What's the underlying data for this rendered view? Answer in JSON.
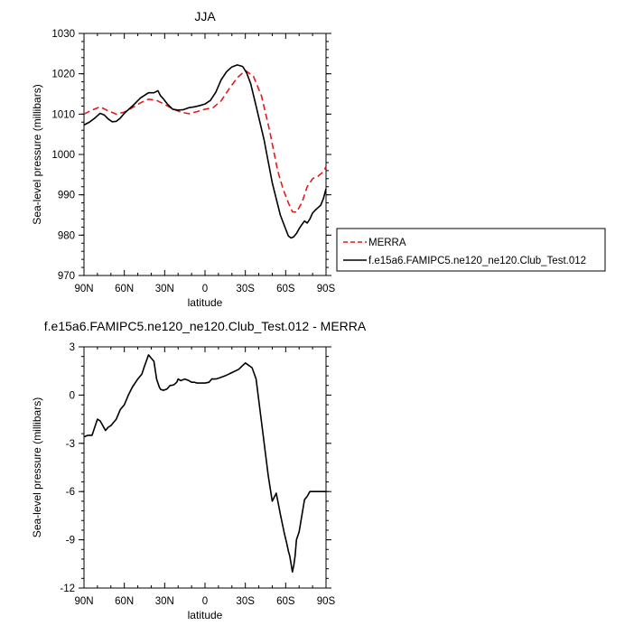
{
  "chart_data": [
    {
      "type": "line",
      "title": "JJA",
      "xlabel": "latitude",
      "ylabel": "Sea-level pressure (millibars)",
      "xlim": [
        90,
        -90
      ],
      "ylim": [
        970,
        1030
      ],
      "xticks": [
        {
          "value": 90,
          "label": "90N"
        },
        {
          "value": 60,
          "label": "60N"
        },
        {
          "value": 30,
          "label": "30N"
        },
        {
          "value": 0,
          "label": "0"
        },
        {
          "value": -30,
          "label": "30S"
        },
        {
          "value": -60,
          "label": "60S"
        },
        {
          "value": -90,
          "label": "90S"
        }
      ],
      "yticks": [
        {
          "value": 970,
          "label": "970"
        },
        {
          "value": 980,
          "label": "980"
        },
        {
          "value": 990,
          "label": "990"
        },
        {
          "value": 1000,
          "label": "1000"
        },
        {
          "value": 1010,
          "label": "1010"
        },
        {
          "value": 1020,
          "label": "1020"
        },
        {
          "value": 1030,
          "label": "1030"
        }
      ],
      "legend": {
        "position": "right-bottom-outside"
      },
      "series": [
        {
          "name": "MERRA",
          "color": "#e41a1c",
          "dash": "dashed",
          "x": [
            90,
            84,
            78,
            72,
            66,
            60,
            54,
            48,
            42,
            36,
            30,
            24,
            18,
            12,
            6,
            0,
            -6,
            -12,
            -18,
            -24,
            -30,
            -36,
            -42,
            -48,
            -54,
            -58,
            -62,
            -65,
            -68,
            -72,
            -76,
            -80,
            -84,
            -88,
            -90
          ],
          "y": [
            1010.0,
            1011.0,
            1011.8,
            1010.8,
            1010.0,
            1010.5,
            1011.6,
            1012.8,
            1013.7,
            1013.4,
            1012.4,
            1011.3,
            1010.5,
            1010.1,
            1010.6,
            1011.2,
            1011.6,
            1013.3,
            1016.3,
            1019.0,
            1020.8,
            1019.4,
            1014.5,
            1006.0,
            996.0,
            991.5,
            988.0,
            985.8,
            985.7,
            988.0,
            992.0,
            994.0,
            994.6,
            995.7,
            997.0
          ]
        },
        {
          "name": "f.e15a6.FAMIPC5.ne120_ne120.Club_Test.012",
          "color": "#000000",
          "dash": "solid",
          "x": [
            90,
            86,
            82,
            78,
            75,
            72,
            69,
            66,
            63,
            60,
            54,
            48,
            42,
            38,
            35,
            33,
            31,
            28,
            24,
            20,
            16,
            12,
            8,
            4,
            0,
            -4,
            -8,
            -12,
            -16,
            -20,
            -24,
            -28,
            -31,
            -34,
            -38,
            -44,
            -50,
            -56,
            -60,
            -62,
            -64,
            -66,
            -68,
            -70,
            -72,
            -74,
            -76,
            -78,
            -80,
            -82,
            -84,
            -86,
            -88,
            -90
          ],
          "y": [
            1007.3,
            1008.0,
            1009.0,
            1010.2,
            1009.8,
            1008.8,
            1008.1,
            1008.2,
            1009.0,
            1010.2,
            1012.0,
            1014.0,
            1015.3,
            1015.3,
            1015.8,
            1014.5,
            1013.8,
            1012.5,
            1011.2,
            1011.0,
            1011.1,
            1011.6,
            1011.8,
            1012.1,
            1012.5,
            1013.4,
            1015.4,
            1018.5,
            1020.5,
            1021.7,
            1022.2,
            1021.8,
            1020.2,
            1017.5,
            1012.0,
            1003.5,
            993.0,
            985.0,
            981.5,
            979.8,
            979.3,
            979.6,
            980.4,
            981.6,
            982.6,
            983.5,
            983.0,
            984.0,
            985.5,
            986.2,
            986.8,
            987.4,
            989.0,
            991.5
          ]
        }
      ]
    },
    {
      "type": "line",
      "title": "f.e15a6.FAMIPC5.ne120_ne120.Club_Test.012 - MERRA",
      "xlabel": "latitude",
      "ylabel": "Sea-level pressure (millibars)",
      "xlim": [
        90,
        -90
      ],
      "ylim": [
        -12,
        3
      ],
      "xticks": [
        {
          "value": 90,
          "label": "90N"
        },
        {
          "value": 60,
          "label": "60N"
        },
        {
          "value": 30,
          "label": "30N"
        },
        {
          "value": 0,
          "label": "0"
        },
        {
          "value": -30,
          "label": "30S"
        },
        {
          "value": -60,
          "label": "60S"
        },
        {
          "value": -90,
          "label": "90S"
        }
      ],
      "yticks": [
        {
          "value": -12,
          "label": "-12"
        },
        {
          "value": -9,
          "label": "-9"
        },
        {
          "value": -6,
          "label": "-6"
        },
        {
          "value": -3,
          "label": "-3"
        },
        {
          "value": 0,
          "label": "0"
        },
        {
          "value": 3,
          "label": "3"
        }
      ],
      "series": [
        {
          "name": "f.e15a6.FAMIPC5.ne120_ne120.Club_Test.012 - MERRA",
          "color": "#000000",
          "dash": "solid",
          "x": [
            90,
            87,
            84,
            82,
            80,
            78,
            76,
            74,
            72,
            70,
            68,
            66,
            63,
            60,
            57,
            54,
            50,
            47,
            45,
            42,
            40,
            38,
            36,
            34,
            33,
            31,
            29,
            28,
            27,
            26,
            25,
            23,
            21,
            20,
            18,
            15,
            12,
            10,
            8,
            6,
            3,
            0,
            -3,
            -5,
            -8,
            -10,
            -15,
            -20,
            -25,
            -30,
            -35,
            -38,
            -41,
            -44,
            -47,
            -50,
            -53,
            -56,
            -59,
            -61,
            -62,
            -63,
            -64,
            -65,
            -66,
            -67,
            -68,
            -70,
            -72,
            -74,
            -76,
            -78,
            -79,
            -80,
            -81,
            -82,
            -83,
            -84,
            -86,
            -88,
            -89,
            -90
          ],
          "y": [
            -2.6,
            -2.5,
            -2.5,
            -2.0,
            -1.5,
            -1.6,
            -1.9,
            -2.2,
            -2.0,
            -1.9,
            -1.7,
            -1.5,
            -0.9,
            -0.6,
            0.0,
            0.5,
            1.0,
            1.3,
            1.8,
            2.5,
            2.3,
            2.1,
            1.0,
            0.5,
            0.35,
            0.3,
            0.35,
            0.4,
            0.5,
            0.6,
            0.6,
            0.65,
            0.8,
            1.0,
            0.9,
            1.0,
            0.9,
            0.8,
            0.8,
            0.75,
            0.75,
            0.75,
            0.8,
            1.0,
            1.0,
            1.05,
            1.2,
            1.4,
            1.6,
            2.0,
            1.7,
            1.0,
            -1.0,
            -3.0,
            -5.0,
            -6.6,
            -6.1,
            -7.4,
            -8.6,
            -9.3,
            -9.7,
            -10.0,
            -10.5,
            -11.0,
            -10.6,
            -10.0,
            -9.0,
            -8.5,
            -7.5,
            -6.5,
            -6.3,
            -6.0,
            -6.0,
            -6.0,
            -6.0,
            -6.0,
            -6.0,
            -6.0,
            -6.0,
            -6.0,
            -6.0,
            -6.0
          ]
        }
      ]
    }
  ]
}
